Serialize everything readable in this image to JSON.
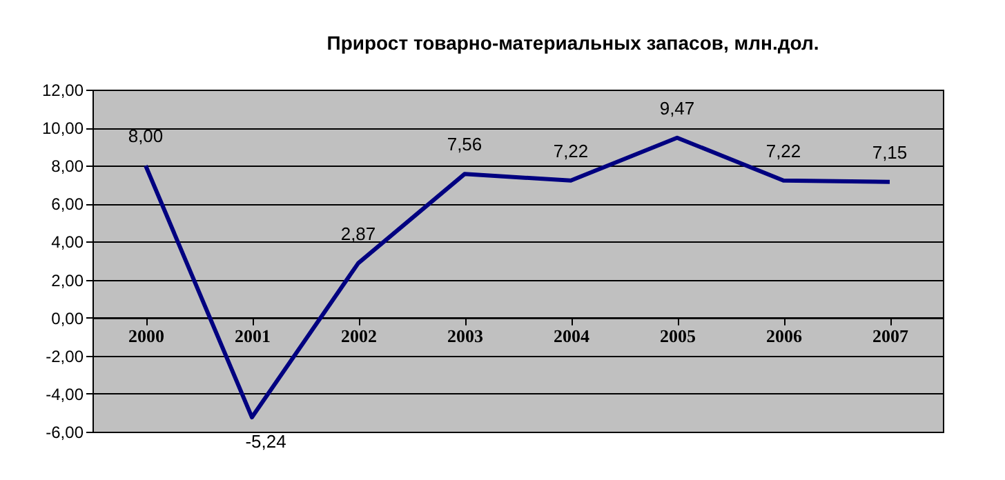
{
  "chart_data": {
    "type": "line",
    "title": "Прирост товарно-материальных запасов, млн.дол.",
    "categories": [
      "2000",
      "2001",
      "2002",
      "2003",
      "2004",
      "2005",
      "2006",
      "2007"
    ],
    "series": [
      {
        "color": "#000080",
        "values": [
          8.0,
          -5.24,
          2.87,
          7.56,
          7.22,
          9.47,
          7.22,
          7.15
        ],
        "value_labels": [
          "8,00",
          "-5,24",
          "2,87",
          "7,56",
          "7,22",
          "9,47",
          "7,22",
          "7,15"
        ]
      }
    ],
    "ylim": [
      -6,
      12
    ],
    "yticks": [
      {
        "value": -6,
        "label": "-6,00"
      },
      {
        "value": -4,
        "label": "-4,00"
      },
      {
        "value": -2,
        "label": "-2,00"
      },
      {
        "value": 0,
        "label": "0,00"
      },
      {
        "value": 2,
        "label": "2,00"
      },
      {
        "value": 4,
        "label": "4,00"
      },
      {
        "value": 6,
        "label": "6,00"
      },
      {
        "value": 8,
        "label": "8,00"
      },
      {
        "value": 10,
        "label": "10,00"
      },
      {
        "value": 12,
        "label": "12,00"
      }
    ],
    "grid": "y",
    "marker": "none",
    "line_style": "solid"
  }
}
